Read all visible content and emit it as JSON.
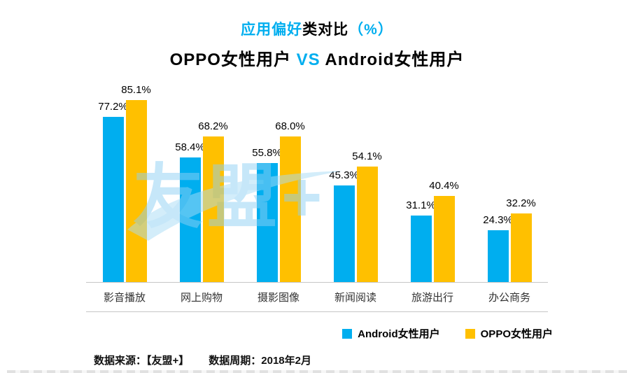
{
  "title": {
    "part1_accent": "应用偏好",
    "part2": "类对比",
    "part3_accent": "（%）"
  },
  "subtitle": {
    "left": "OPPO女性用户",
    "vs": " VS ",
    "right": "Android女性用户"
  },
  "watermark": "友盟+",
  "colors": {
    "accent": "#00AEEF",
    "android": "#00AEEF",
    "oppo": "#FFC000"
  },
  "chart_data": {
    "type": "bar",
    "categories": [
      "影音播放",
      "网上购物",
      "摄影图像",
      "新闻阅读",
      "旅游出行",
      "办公商务"
    ],
    "series": [
      {
        "name": "Android女性用户",
        "color_key": "android",
        "values": [
          77.2,
          58.4,
          55.8,
          45.3,
          31.1,
          24.3
        ]
      },
      {
        "name": "OPPO女性用户",
        "color_key": "oppo",
        "values": [
          85.1,
          68.2,
          68.0,
          54.1,
          40.4,
          32.2
        ]
      }
    ],
    "title": "应用偏好类对比（%） OPPO女性用户 VS Android女性用户",
    "xlabel": "",
    "ylabel": "",
    "ylim": [
      0,
      100
    ],
    "value_suffix": "%",
    "grid": false,
    "legend_position": "bottom"
  },
  "footer": {
    "source": "数据来源：【友盟+】",
    "period": "数据周期：2018年2月"
  }
}
